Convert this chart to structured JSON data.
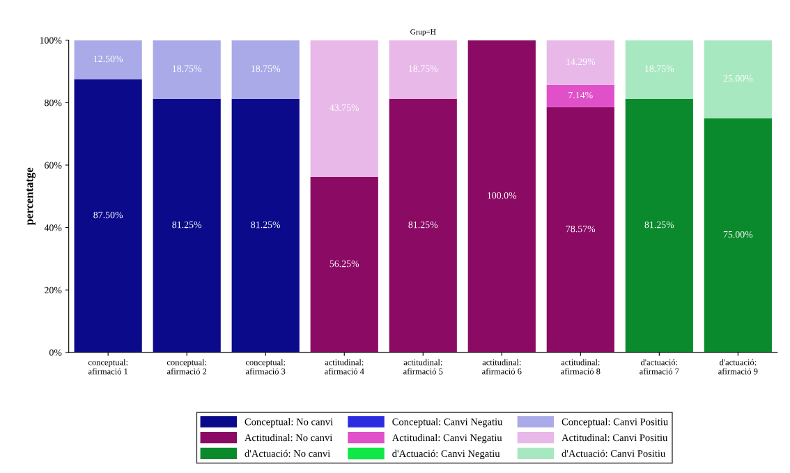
{
  "chart_data": {
    "type": "bar",
    "stacked": true,
    "title": "Grup=H",
    "ylabel": "percentatge",
    "categories": [
      "conceptual:\nafirmació 1",
      "conceptual:\nafirmació 2",
      "conceptual:\nafirmació 3",
      "actitudinal:\nafirmació 4",
      "actitudinal:\nafirmació 5",
      "actitudinal:\nafirmació 6",
      "actitudinal:\nafirmació 8",
      "d'actuació:\nafirmació 7",
      "d'actuació:\nafirmació 9"
    ],
    "series": [
      {
        "name": "Conceptual: No canvi",
        "color": "#0a0a8a",
        "values": [
          87.5,
          81.25,
          81.25,
          null,
          null,
          null,
          null,
          null,
          null
        ],
        "value_labels": [
          "87.50%",
          "81.25%",
          "81.25%",
          null,
          null,
          null,
          null,
          null,
          null
        ]
      },
      {
        "name": "Actitudinal: No canvi",
        "color": "#8a0a64",
        "values": [
          null,
          null,
          null,
          56.25,
          81.25,
          100,
          78.57,
          null,
          null
        ],
        "value_labels": [
          null,
          null,
          null,
          "56.25%",
          "81.25%",
          "100.0%",
          "78.57%",
          null,
          null
        ]
      },
      {
        "name": "d'Actuació: No canvi",
        "color": "#0a8a2c",
        "values": [
          null,
          null,
          null,
          null,
          null,
          null,
          null,
          81.25,
          75
        ],
        "value_labels": [
          null,
          null,
          null,
          null,
          null,
          null,
          null,
          "81.25%",
          "75.00%"
        ]
      },
      {
        "name": "Conceptual: Canvi Negatiu",
        "color": "#2c2ce0",
        "values": [
          null,
          null,
          null,
          null,
          null,
          null,
          null,
          null,
          null
        ]
      },
      {
        "name": "Actitudinal: Canvi Negatiu",
        "color": "#e050c8",
        "values": [
          null,
          null,
          null,
          null,
          null,
          null,
          7.14,
          null,
          null
        ],
        "value_labels": [
          null,
          null,
          null,
          null,
          null,
          null,
          "7.14%",
          null,
          null
        ]
      },
      {
        "name": "d'Actuació: Canvi Negatiu",
        "color": "#10e848",
        "values": [
          null,
          null,
          null,
          null,
          null,
          null,
          null,
          null,
          null
        ]
      },
      {
        "name": "Conceptual: Canvi Positiu",
        "color": "#aaaae8",
        "values": [
          12.5,
          18.75,
          18.75,
          null,
          null,
          null,
          null,
          null,
          null
        ],
        "value_labels": [
          "12.50%",
          "18.75%",
          "18.75%",
          null,
          null,
          null,
          null,
          null,
          null
        ]
      },
      {
        "name": "Actitudinal: Canvi Positiu",
        "color": "#e8b8e8",
        "values": [
          null,
          null,
          null,
          43.75,
          18.75,
          null,
          14.29,
          null,
          null
        ],
        "value_labels": [
          null,
          null,
          null,
          "43.75%",
          "18.75%",
          null,
          "14.29%",
          null,
          null
        ]
      },
      {
        "name": "d'Actuació: Canvi Positiu",
        "color": "#a8e8c0",
        "values": [
          null,
          null,
          null,
          null,
          null,
          null,
          null,
          18.75,
          25
        ],
        "value_labels": [
          null,
          null,
          null,
          null,
          null,
          null,
          null,
          "18.75%",
          "25.00%"
        ]
      }
    ],
    "ylim": [
      0,
      100
    ],
    "yticks": [
      {
        "value": 0,
        "label": "0%"
      },
      {
        "value": 20,
        "label": "20%"
      },
      {
        "value": 40,
        "label": "40%"
      },
      {
        "value": 60,
        "label": "60%"
      },
      {
        "value": 80,
        "label": "80%"
      },
      {
        "value": 100,
        "label": "100%"
      }
    ],
    "grid": false,
    "legend": "bottom"
  }
}
